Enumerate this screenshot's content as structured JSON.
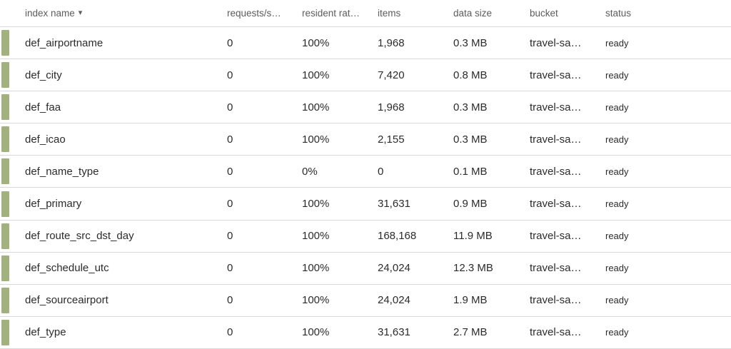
{
  "colors": {
    "accent_bar": "#a2b17e",
    "row_border": "#d9d9d9",
    "header_text": "#5c5c5c",
    "cell_text": "#2b2b2b"
  },
  "table": {
    "columns": {
      "name": {
        "label": "index name",
        "sort_icon": "▾"
      },
      "requests": {
        "label": "requests/s…"
      },
      "resident": {
        "label": "resident rat…"
      },
      "items": {
        "label": "items"
      },
      "data_size": {
        "label": "data size"
      },
      "bucket": {
        "label": "bucket"
      },
      "status": {
        "label": "status"
      }
    },
    "rows": [
      {
        "name": "def_airportname",
        "requests": "0",
        "resident": "100%",
        "items": "1,968",
        "data_size": "0.3 MB",
        "bucket": "travel-sa…",
        "status": "ready"
      },
      {
        "name": "def_city",
        "requests": "0",
        "resident": "100%",
        "items": "7,420",
        "data_size": "0.8 MB",
        "bucket": "travel-sa…",
        "status": "ready"
      },
      {
        "name": "def_faa",
        "requests": "0",
        "resident": "100%",
        "items": "1,968",
        "data_size": "0.3 MB",
        "bucket": "travel-sa…",
        "status": "ready"
      },
      {
        "name": "def_icao",
        "requests": "0",
        "resident": "100%",
        "items": "2,155",
        "data_size": "0.3 MB",
        "bucket": "travel-sa…",
        "status": "ready"
      },
      {
        "name": "def_name_type",
        "requests": "0",
        "resident": "0%",
        "items": "0",
        "data_size": "0.1 MB",
        "bucket": "travel-sa…",
        "status": "ready"
      },
      {
        "name": "def_primary",
        "requests": "0",
        "resident": "100%",
        "items": "31,631",
        "data_size": "0.9 MB",
        "bucket": "travel-sa…",
        "status": "ready"
      },
      {
        "name": "def_route_src_dst_day",
        "requests": "0",
        "resident": "100%",
        "items": "168,168",
        "data_size": "11.9 MB",
        "bucket": "travel-sa…",
        "status": "ready"
      },
      {
        "name": "def_schedule_utc",
        "requests": "0",
        "resident": "100%",
        "items": "24,024",
        "data_size": "12.3 MB",
        "bucket": "travel-sa…",
        "status": "ready"
      },
      {
        "name": "def_sourceairport",
        "requests": "0",
        "resident": "100%",
        "items": "24,024",
        "data_size": "1.9 MB",
        "bucket": "travel-sa…",
        "status": "ready"
      },
      {
        "name": "def_type",
        "requests": "0",
        "resident": "100%",
        "items": "31,631",
        "data_size": "2.7 MB",
        "bucket": "travel-sa…",
        "status": "ready"
      }
    ]
  }
}
